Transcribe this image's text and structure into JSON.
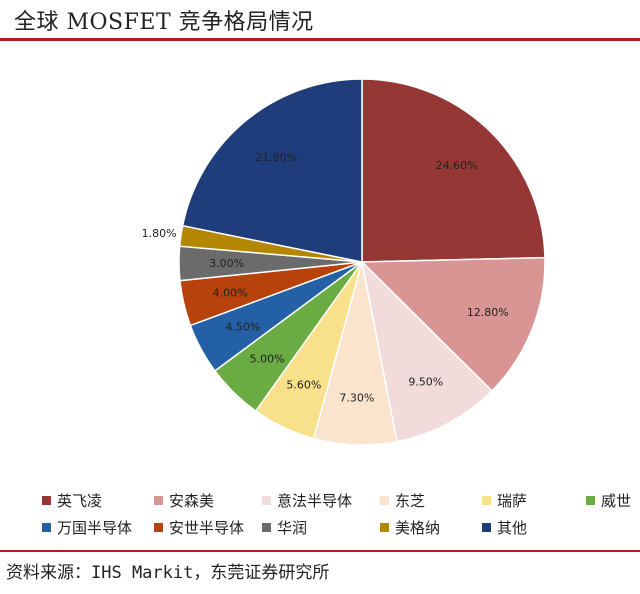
{
  "page": {
    "source_text": "资料来源：IHS Markit，东莞证券研究所"
  },
  "chart_data": {
    "type": "pie",
    "title": "全球 MOSFET 竞争格局情况",
    "legend_position": "bottom",
    "slices": [
      {
        "name": "英飞凌",
        "value": 24.6,
        "label": "24.60%",
        "color": "#953735"
      },
      {
        "name": "安森美",
        "value": 12.8,
        "label": "12.80%",
        "color": "#d99594"
      },
      {
        "name": "意法半导体",
        "value": 9.5,
        "label": "9.50%",
        "color": "#f2dcdb"
      },
      {
        "name": "东芝",
        "value": 7.3,
        "label": "7.30%",
        "color": "#fbe4cd"
      },
      {
        "name": "瑞萨",
        "value": 5.6,
        "label": "5.60%",
        "color": "#f9e08a"
      },
      {
        "name": "威世",
        "value": 5.0,
        "label": "5.00%",
        "color": "#6aab44"
      },
      {
        "name": "万国半导体",
        "value": 4.5,
        "label": "4.50%",
        "color": "#2360a5"
      },
      {
        "name": "安世半导体",
        "value": 4.0,
        "label": "4.00%",
        "color": "#b8420b"
      },
      {
        "name": "华润",
        "value": 3.0,
        "label": "3.00%",
        "color": "#6b6b6b"
      },
      {
        "name": "美格纳",
        "value": 1.8,
        "label": "1.80%",
        "color": "#b38700"
      },
      {
        "name": "其他",
        "value": 21.8,
        "label": "21.80%",
        "color": "#1f3d7a"
      }
    ]
  }
}
